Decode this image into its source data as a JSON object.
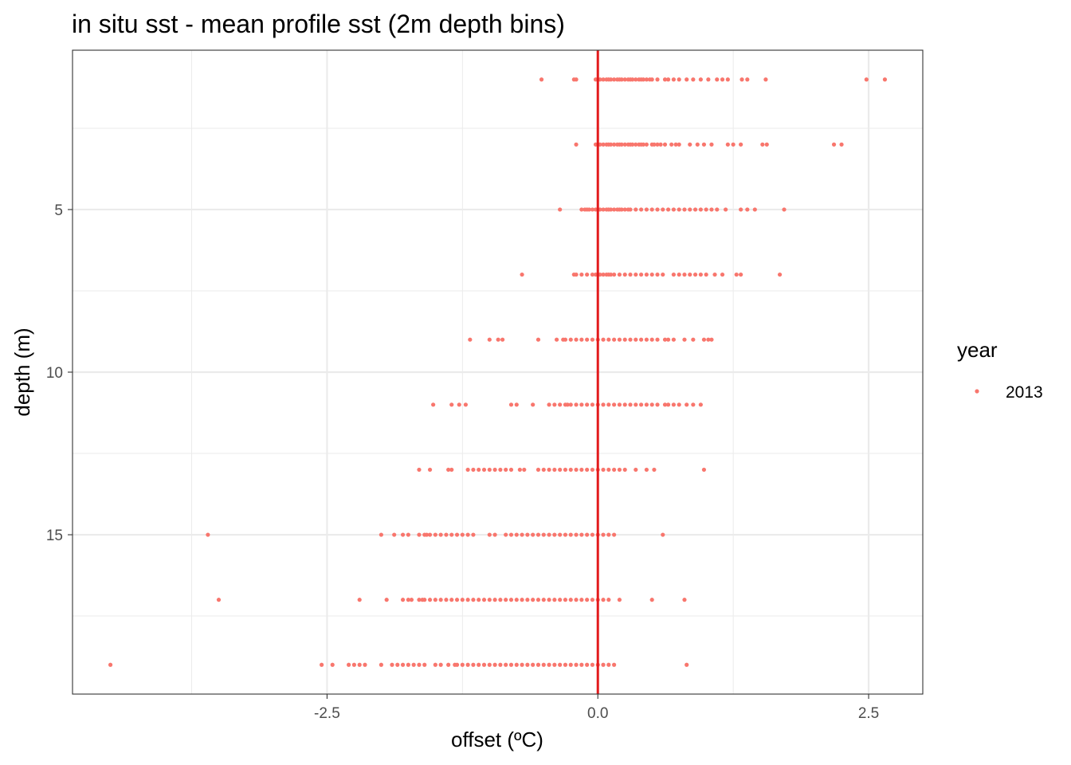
{
  "chart_data": {
    "type": "scatter",
    "title": "in situ sst - mean profile sst (2m depth bins)",
    "xlabel": "offset (ºC)",
    "ylabel": "depth (m)",
    "xlim": [
      -4.85,
      3.0
    ],
    "ylim": [
      19.9,
      0.1
    ],
    "x_reversed": false,
    "y_reversed": true,
    "x_ticks": [
      -2.5,
      0.0,
      2.5
    ],
    "x_tick_labels": [
      "-2.5",
      "0.0",
      "2.5"
    ],
    "y_ticks": [
      5,
      10,
      15
    ],
    "y_tick_labels": [
      "5",
      "10",
      "15"
    ],
    "grid": true,
    "legend_position": "right",
    "legend": {
      "title": "year",
      "entries": [
        "2013"
      ]
    },
    "reference_line": {
      "x": 0.0,
      "color": "#e31a1c"
    },
    "point_color": "#f8766d",
    "series": [
      {
        "name": "2013",
        "depth_bins": [
          {
            "depth": 1,
            "x": [
              -0.52,
              -0.22,
              -0.2,
              -0.02,
              0.0,
              0.02,
              0.05,
              0.08,
              0.1,
              0.12,
              0.15,
              0.18,
              0.2,
              0.22,
              0.25,
              0.28,
              0.3,
              0.32,
              0.35,
              0.38,
              0.4,
              0.42,
              0.45,
              0.48,
              0.5,
              0.55,
              0.62,
              0.65,
              0.7,
              0.75,
              0.82,
              0.88,
              0.95,
              1.02,
              1.1,
              1.15,
              1.2,
              1.33,
              1.38,
              1.55,
              2.48,
              2.65
            ]
          },
          {
            "depth": 3,
            "x": [
              -0.2,
              -0.02,
              0.0,
              0.02,
              0.05,
              0.08,
              0.1,
              0.12,
              0.15,
              0.18,
              0.2,
              0.22,
              0.25,
              0.28,
              0.3,
              0.32,
              0.35,
              0.38,
              0.4,
              0.42,
              0.45,
              0.5,
              0.52,
              0.55,
              0.58,
              0.62,
              0.68,
              0.72,
              0.75,
              0.85,
              0.92,
              0.98,
              1.05,
              1.2,
              1.25,
              1.32,
              1.52,
              1.56,
              2.18,
              2.25
            ]
          },
          {
            "depth": 5,
            "x": [
              -0.35,
              -0.12,
              -0.15,
              -0.1,
              -0.08,
              -0.05,
              -0.02,
              0.0,
              0.02,
              0.05,
              0.08,
              0.1,
              0.12,
              0.15,
              0.18,
              0.2,
              0.22,
              0.25,
              0.28,
              0.3,
              0.35,
              0.4,
              0.45,
              0.5,
              0.55,
              0.6,
              0.65,
              0.7,
              0.75,
              0.8,
              0.85,
              0.9,
              0.95,
              1.0,
              1.05,
              1.1,
              1.18,
              1.32,
              1.38,
              1.45,
              1.72
            ]
          },
          {
            "depth": 7,
            "x": [
              -0.7,
              -0.22,
              -0.2,
              -0.15,
              -0.1,
              -0.05,
              -0.02,
              0.0,
              0.02,
              0.05,
              0.08,
              0.1,
              0.12,
              0.15,
              0.2,
              0.25,
              0.3,
              0.35,
              0.4,
              0.45,
              0.5,
              0.55,
              0.6,
              0.7,
              0.75,
              0.8,
              0.85,
              0.9,
              0.95,
              1.0,
              1.08,
              1.15,
              1.28,
              1.32,
              1.68
            ]
          },
          {
            "depth": 9,
            "x": [
              -1.18,
              -1.0,
              -0.92,
              -0.88,
              -0.55,
              -0.38,
              -0.32,
              -0.3,
              -0.25,
              -0.2,
              -0.15,
              -0.1,
              -0.05,
              0.0,
              0.05,
              0.1,
              0.15,
              0.2,
              0.25,
              0.3,
              0.35,
              0.4,
              0.45,
              0.5,
              0.55,
              0.62,
              0.65,
              0.7,
              0.8,
              0.88,
              0.98,
              1.02,
              1.05
            ]
          },
          {
            "depth": 11,
            "x": [
              -1.52,
              -1.35,
              -1.28,
              -1.22,
              -0.8,
              -0.75,
              -0.6,
              -0.45,
              -0.4,
              -0.35,
              -0.3,
              -0.28,
              -0.25,
              -0.2,
              -0.15,
              -0.1,
              -0.05,
              0.0,
              0.05,
              0.1,
              0.15,
              0.2,
              0.25,
              0.3,
              0.35,
              0.4,
              0.45,
              0.5,
              0.55,
              0.62,
              0.65,
              0.7,
              0.75,
              0.82,
              0.88,
              0.95
            ]
          },
          {
            "depth": 13,
            "x": [
              -1.65,
              -1.55,
              -1.38,
              -1.35,
              -1.2,
              -1.15,
              -1.1,
              -1.05,
              -1.0,
              -0.95,
              -0.9,
              -0.85,
              -0.8,
              -0.72,
              -0.68,
              -0.55,
              -0.5,
              -0.45,
              -0.4,
              -0.35,
              -0.3,
              -0.25,
              -0.2,
              -0.15,
              -0.1,
              -0.05,
              0.0,
              0.05,
              0.1,
              0.15,
              0.2,
              0.25,
              0.35,
              0.45,
              0.52,
              0.98
            ]
          },
          {
            "depth": 15,
            "x": [
              -3.6,
              -2.0,
              -1.88,
              -1.8,
              -1.75,
              -1.65,
              -1.6,
              -1.58,
              -1.55,
              -1.5,
              -1.45,
              -1.4,
              -1.35,
              -1.3,
              -1.25,
              -1.2,
              -1.15,
              -1.0,
              -0.95,
              -0.85,
              -0.8,
              -0.75,
              -0.7,
              -0.65,
              -0.6,
              -0.55,
              -0.5,
              -0.45,
              -0.4,
              -0.35,
              -0.3,
              -0.25,
              -0.2,
              -0.15,
              -0.1,
              -0.05,
              0.0,
              0.05,
              0.1,
              0.15,
              0.6
            ]
          },
          {
            "depth": 17,
            "x": [
              -3.5,
              -2.2,
              -1.95,
              -1.8,
              -1.75,
              -1.72,
              -1.65,
              -1.62,
              -1.6,
              -1.55,
              -1.5,
              -1.45,
              -1.4,
              -1.35,
              -1.3,
              -1.25,
              -1.2,
              -1.15,
              -1.1,
              -1.05,
              -1.0,
              -0.95,
              -0.9,
              -0.85,
              -0.8,
              -0.75,
              -0.7,
              -0.65,
              -0.6,
              -0.55,
              -0.5,
              -0.45,
              -0.4,
              -0.35,
              -0.3,
              -0.25,
              -0.2,
              -0.15,
              -0.1,
              -0.05,
              0.0,
              0.05,
              0.1,
              0.2,
              0.5,
              0.8
            ]
          },
          {
            "depth": 19,
            "x": [
              -4.5,
              -2.55,
              -2.45,
              -2.3,
              -2.25,
              -2.2,
              -2.15,
              -2.0,
              -1.9,
              -1.85,
              -1.8,
              -1.75,
              -1.7,
              -1.65,
              -1.6,
              -1.5,
              -1.45,
              -1.38,
              -1.32,
              -1.3,
              -1.25,
              -1.2,
              -1.15,
              -1.1,
              -1.05,
              -1.0,
              -0.95,
              -0.9,
              -0.85,
              -0.8,
              -0.75,
              -0.7,
              -0.65,
              -0.6,
              -0.55,
              -0.5,
              -0.45,
              -0.4,
              -0.35,
              -0.3,
              -0.25,
              -0.2,
              -0.15,
              -0.1,
              -0.05,
              0.0,
              0.05,
              0.1,
              0.15,
              0.82
            ]
          }
        ]
      }
    ]
  }
}
